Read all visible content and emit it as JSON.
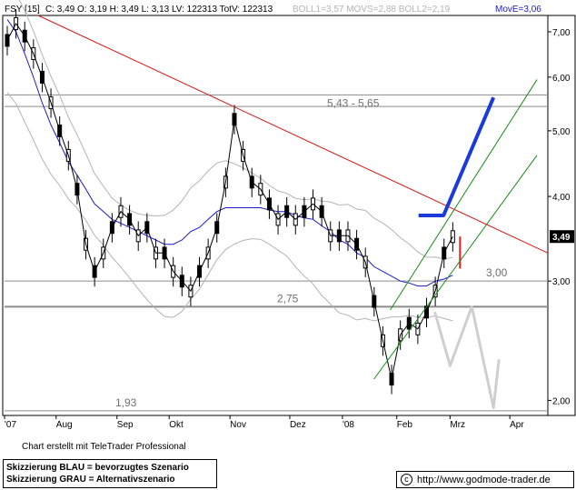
{
  "header": {
    "ticker": "FSY [15]",
    "stats": "C: 3,49 O: 3,19 H: 3,49 L: 3,13 LV: 122313 TotV: 122313",
    "boll": "BOLL1=3,57 MOVS=2,88 BOLL2=2,19",
    "move": "MovE=3,06"
  },
  "colors": {
    "price": "#000000",
    "bollinger": "#b4b4b4",
    "moving_average": "#1c1ccc",
    "resistance_trend": "#d81818",
    "channel": "#1a8a1a",
    "scenario_blue": "#1a3adc",
    "scenario_grey": "#cfcfcf",
    "last_candle": "#e02020"
  },
  "chart_data": {
    "type": "line",
    "title": "FSY [15]",
    "y_scale": "log",
    "ylim": [
      1.9,
      7.4
    ],
    "x_labels": [
      "'07",
      "Aug",
      "Sep",
      "Okt",
      "Nov",
      "Dez",
      "'08",
      "Feb",
      "Mrz",
      "Apr"
    ],
    "y_ticks": [
      "2,00",
      "3,00",
      "4,00",
      "5,00",
      "6,00",
      "7,00"
    ],
    "last_price_label": "3,49",
    "horizontal_levels": [
      {
        "label": "5,43 - 5,65",
        "values": [
          5.43,
          5.65
        ]
      },
      {
        "label": "3,00",
        "value": 3.0
      },
      {
        "label": "2,75",
        "value": 2.75
      },
      {
        "label": "1,93",
        "value": 1.93
      }
    ],
    "series": [
      {
        "values": [
          6.8,
          7.2,
          6.9,
          6.5,
          6.0,
          5.5,
          5.0,
          4.6,
          4.1,
          3.4,
          3.1,
          3.3,
          3.6,
          3.8,
          3.7,
          3.5,
          3.6,
          3.3,
          3.3,
          3.1,
          3.0,
          2.9,
          3.1,
          3.3,
          3.6,
          4.2,
          5.2,
          4.6,
          4.2,
          4.1,
          3.9,
          3.7,
          3.8,
          3.7,
          3.8,
          3.9,
          3.8,
          3.5,
          3.5,
          3.5,
          3.4,
          3.2,
          2.8,
          2.45,
          2.15,
          2.5,
          2.6,
          2.55,
          2.7,
          2.9,
          3.3,
          3.49
        ]
      },
      {
        "values": [
          7.3,
          7.0,
          6.5,
          6.0,
          5.5,
          5.1,
          4.8,
          4.5,
          4.3,
          4.1,
          3.9,
          3.8,
          3.7,
          3.65,
          3.6,
          3.55,
          3.5,
          3.45,
          3.4,
          3.4,
          3.45,
          3.55,
          3.6,
          3.7,
          3.8,
          3.85,
          3.85,
          3.85,
          3.85,
          3.85,
          3.82,
          3.8,
          3.8,
          3.75,
          3.72,
          3.7,
          3.62,
          3.55,
          3.45,
          3.4,
          3.3,
          3.25,
          3.15,
          3.1,
          3.05,
          3.0,
          2.98,
          2.95,
          2.95,
          3.0,
          3.02,
          3.06
        ]
      }
    ],
    "trendlines": [
      {
        "name": "resistance",
        "from": [
          6.9,
          7.4
        ],
        "to": [
          5.45,
          3.3
        ]
      },
      {
        "name": "channel-upper",
        "from": [
          0.71,
          2.72
        ],
        "to": [
          0.98,
          5.95
        ]
      },
      {
        "name": "channel-lower",
        "from": [
          0.68,
          2.15
        ],
        "to": [
          0.98,
          4.6
        ]
      }
    ],
    "scenarios": [
      {
        "name": "Skizzierung BLAU = bevorzugtes Szenario",
        "path": [
          [
            0.762,
            3.75
          ],
          [
            0.808,
            3.75
          ],
          [
            0.9,
            5.6
          ]
        ]
      },
      {
        "name": "Skizzierung GRAU = Alternativszenario",
        "path": [
          [
            0.792,
            2.7
          ],
          [
            0.82,
            2.25
          ],
          [
            0.86,
            2.75
          ],
          [
            0.9,
            1.95
          ],
          [
            0.91,
            2.3
          ]
        ]
      }
    ],
    "grid": false,
    "legend": "bottom-left"
  },
  "footer": {
    "credit": "Chart erstellt mit TeleTrader Professional",
    "legend_blue": "Skizzierung BLAU = bevorzugtes Szenario",
    "legend_grey": "Skizzierung GRAU = Alternativszenario",
    "url": "http://www.godmode-trader.de",
    "copyright_icon": "copyright-icon"
  }
}
